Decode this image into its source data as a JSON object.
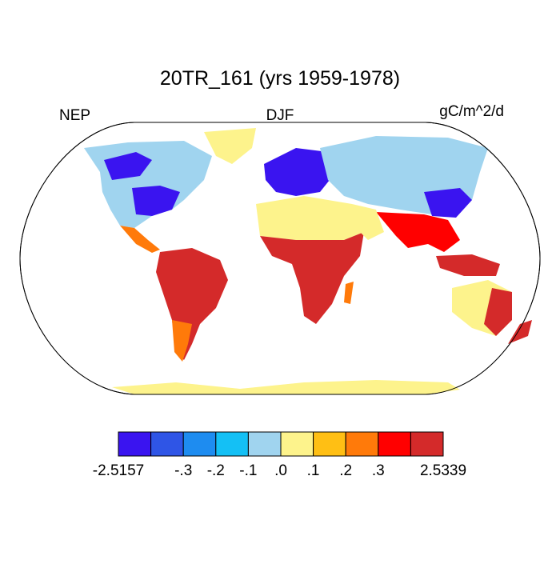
{
  "title": "20TR_161 (yrs 1959-1978)",
  "left_string": "NEP",
  "center_string": "DJF",
  "right_string": "gC/m^2/d",
  "colorbar": {
    "colors": [
      "#3a14f0",
      "#2f55e6",
      "#1e8cf0",
      "#14c0f5",
      "#a0d4ef",
      "#fdf38c",
      "#ffbf14",
      "#ff7a0a",
      "#ff0000",
      "#d42a2a"
    ],
    "ticks": [
      {
        "value": -2.5157,
        "label": "-2.5157"
      },
      null,
      {
        "value": -0.3,
        "label": "-.3"
      },
      {
        "value": -0.2,
        "label": "-.2"
      },
      {
        "value": -0.1,
        "label": "-.1"
      },
      {
        "value": 0.0,
        "label": ".0"
      },
      {
        "value": 0.1,
        "label": ".1"
      },
      {
        "value": 0.2,
        "label": ".2"
      },
      {
        "value": 0.3,
        "label": ".3"
      },
      null,
      {
        "value": 2.5339,
        "label": "2.5339"
      }
    ]
  }
}
